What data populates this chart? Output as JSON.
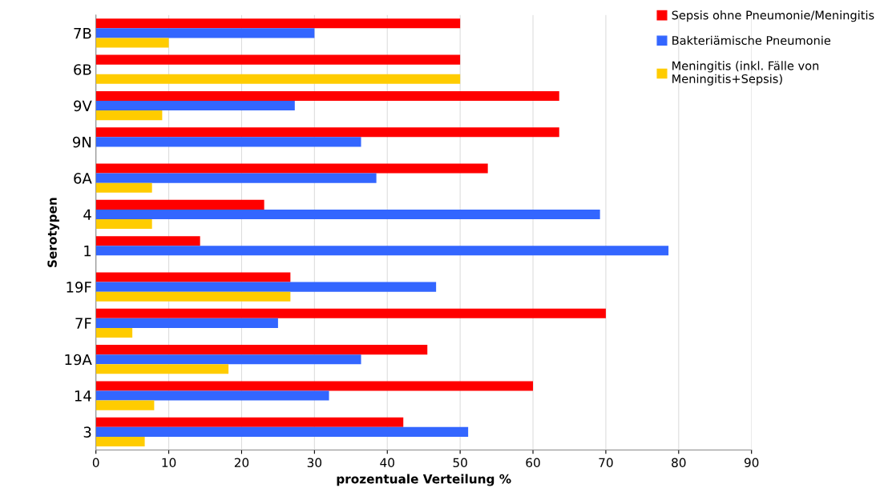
{
  "chart_data": {
    "type": "bar",
    "orientation": "horizontal",
    "xlabel": "prozentuale Verteilung %",
    "ylabel": "Serotypen",
    "categories": [
      "7B",
      "6B",
      "9V",
      "9N",
      "6A",
      "4",
      "1",
      "19F",
      "7F",
      "19A",
      "14",
      "3"
    ],
    "series": [
      {
        "name": "Sepsis ohne Pneumonie/Meningitis",
        "color": "#ff0000",
        "values": [
          50,
          50,
          63.6,
          63.6,
          53.8,
          23.1,
          14.3,
          26.7,
          70,
          45.5,
          60,
          42.2
        ]
      },
      {
        "name": "Bakteriämische Pneumonie",
        "color": "#3366ff",
        "values": [
          30,
          0,
          27.3,
          36.4,
          38.5,
          69.2,
          78.6,
          46.7,
          25,
          36.4,
          32,
          51.1
        ]
      },
      {
        "name": "Meningitis (inkl. Fälle von Meningitis+Sepsis)",
        "color": "#ffcc00",
        "values": [
          10,
          50,
          9.1,
          0,
          7.7,
          7.7,
          0,
          26.7,
          5,
          18.2,
          8,
          6.7
        ]
      }
    ],
    "xlim": [
      0,
      90
    ],
    "xticks": [
      0,
      10,
      20,
      30,
      40,
      50,
      60,
      70,
      80,
      90
    ],
    "grid": "x",
    "legend": "top right"
  }
}
